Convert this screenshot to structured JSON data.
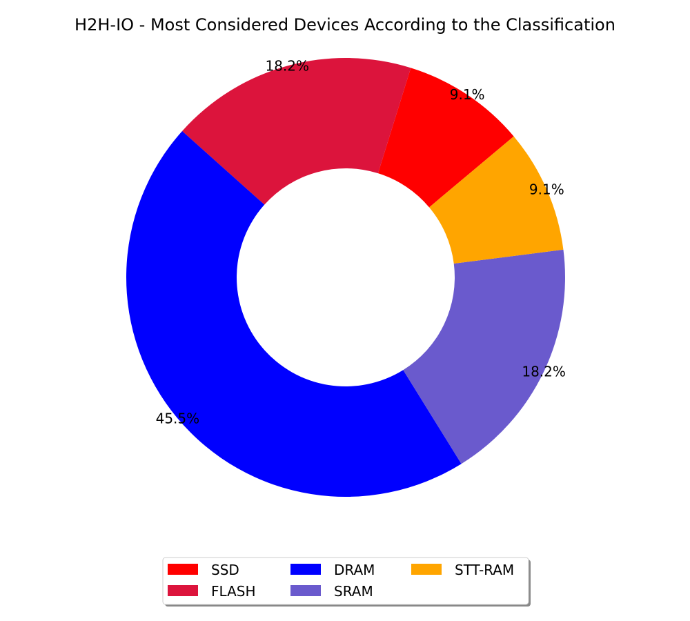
{
  "chart_data": {
    "type": "pie",
    "title": "H2H-IO - Most Considered Devices According to the Classification",
    "donut": true,
    "slices": [
      {
        "label": "SSD",
        "value": 9.1,
        "pct_label": "9.1%",
        "color": "#ff0000"
      },
      {
        "label": "FLASH",
        "value": 18.2,
        "pct_label": "18.2%",
        "color": "#dc143c"
      },
      {
        "label": "DRAM",
        "value": 45.5,
        "pct_label": "45.5%",
        "color": "#0000ff"
      },
      {
        "label": "SRAM",
        "value": 18.2,
        "pct_label": "18.2%",
        "color": "#6a5acd"
      },
      {
        "label": "STT-RAM",
        "value": 9.1,
        "pct_label": "9.1%",
        "color": "#ffa500"
      }
    ],
    "legend": {
      "placement": "bottom-center",
      "columns": 3
    }
  }
}
